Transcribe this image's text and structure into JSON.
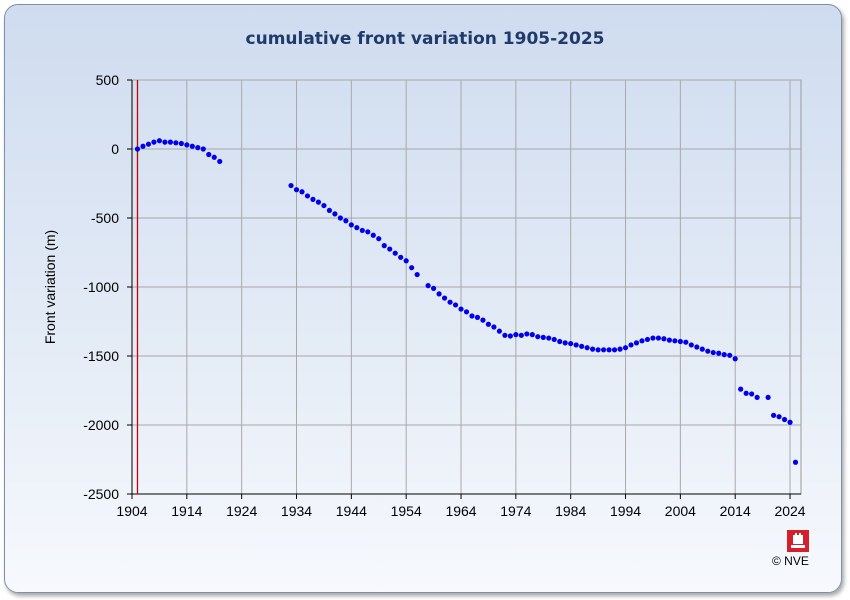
{
  "chart_data": {
    "type": "scatter",
    "title": "cumulative front variation 1905-2025",
    "xlabel": "",
    "ylabel": "Front variation (m)",
    "xlim": [
      1904,
      2026
    ],
    "ylim": [
      -2500,
      500
    ],
    "x_ticks": [
      1904,
      1914,
      1924,
      1934,
      1944,
      1954,
      1964,
      1974,
      1984,
      1994,
      2004,
      2014,
      2024
    ],
    "y_ticks": [
      500,
      0,
      -500,
      -1000,
      -1500,
      -2000,
      -2500
    ],
    "grid": true,
    "reference_line_x": 1905,
    "colors": {
      "points": "#0000ee",
      "reference_line": "#cc0000",
      "title": "#1f3a6b"
    },
    "series": [
      {
        "points": [
          [
            1905,
            0
          ],
          [
            1906,
            20
          ],
          [
            1907,
            35
          ],
          [
            1908,
            50
          ],
          [
            1909,
            60
          ],
          [
            1910,
            50
          ],
          [
            1911,
            50
          ],
          [
            1912,
            45
          ],
          [
            1913,
            40
          ],
          [
            1914,
            30
          ],
          [
            1915,
            20
          ],
          [
            1916,
            10
          ],
          [
            1917,
            0
          ],
          [
            1918,
            -40
          ],
          [
            1919,
            -60
          ],
          [
            1920,
            -90
          ],
          [
            1933,
            -265
          ],
          [
            1934,
            -295
          ],
          [
            1935,
            -310
          ],
          [
            1936,
            -340
          ],
          [
            1937,
            -365
          ],
          [
            1938,
            -385
          ],
          [
            1939,
            -410
          ],
          [
            1940,
            -445
          ],
          [
            1941,
            -470
          ],
          [
            1942,
            -500
          ],
          [
            1943,
            -520
          ],
          [
            1944,
            -550
          ],
          [
            1945,
            -570
          ],
          [
            1946,
            -590
          ],
          [
            1947,
            -600
          ],
          [
            1948,
            -625
          ],
          [
            1949,
            -650
          ],
          [
            1950,
            -700
          ],
          [
            1951,
            -725
          ],
          [
            1952,
            -755
          ],
          [
            1953,
            -785
          ],
          [
            1954,
            -810
          ],
          [
            1955,
            -860
          ],
          [
            1956,
            -910
          ],
          [
            1958,
            -990
          ],
          [
            1959,
            -1010
          ],
          [
            1960,
            -1050
          ],
          [
            1961,
            -1080
          ],
          [
            1962,
            -1110
          ],
          [
            1963,
            -1130
          ],
          [
            1964,
            -1160
          ],
          [
            1965,
            -1180
          ],
          [
            1966,
            -1210
          ],
          [
            1967,
            -1220
          ],
          [
            1968,
            -1240
          ],
          [
            1969,
            -1270
          ],
          [
            1970,
            -1290
          ],
          [
            1971,
            -1320
          ],
          [
            1972,
            -1350
          ],
          [
            1973,
            -1355
          ],
          [
            1974,
            -1345
          ],
          [
            1975,
            -1350
          ],
          [
            1976,
            -1340
          ],
          [
            1977,
            -1345
          ],
          [
            1978,
            -1360
          ],
          [
            1979,
            -1365
          ],
          [
            1980,
            -1370
          ],
          [
            1981,
            -1380
          ],
          [
            1982,
            -1395
          ],
          [
            1983,
            -1405
          ],
          [
            1984,
            -1410
          ],
          [
            1985,
            -1420
          ],
          [
            1986,
            -1430
          ],
          [
            1987,
            -1440
          ],
          [
            1988,
            -1450
          ],
          [
            1989,
            -1455
          ],
          [
            1990,
            -1455
          ],
          [
            1991,
            -1455
          ],
          [
            1992,
            -1455
          ],
          [
            1993,
            -1450
          ],
          [
            1994,
            -1440
          ],
          [
            1995,
            -1420
          ],
          [
            1996,
            -1405
          ],
          [
            1997,
            -1390
          ],
          [
            1998,
            -1380
          ],
          [
            1999,
            -1370
          ],
          [
            2000,
            -1370
          ],
          [
            2001,
            -1375
          ],
          [
            2002,
            -1385
          ],
          [
            2003,
            -1390
          ],
          [
            2004,
            -1395
          ],
          [
            2005,
            -1400
          ],
          [
            2006,
            -1420
          ],
          [
            2007,
            -1435
          ],
          [
            2008,
            -1450
          ],
          [
            2009,
            -1465
          ],
          [
            2010,
            -1475
          ],
          [
            2011,
            -1480
          ],
          [
            2012,
            -1490
          ],
          [
            2013,
            -1495
          ],
          [
            2014,
            -1520
          ],
          [
            2015,
            -1740
          ],
          [
            2016,
            -1770
          ],
          [
            2017,
            -1775
          ],
          [
            2018,
            -1800
          ],
          [
            2020,
            -1800
          ],
          [
            2021,
            -1930
          ],
          [
            2022,
            -1940
          ],
          [
            2023,
            -1960
          ],
          [
            2024,
            -1980
          ],
          [
            2025,
            -2270
          ]
        ]
      }
    ]
  },
  "footer": {
    "copyright": "© NVE",
    "logo_icon": "nve-logo-icon"
  }
}
